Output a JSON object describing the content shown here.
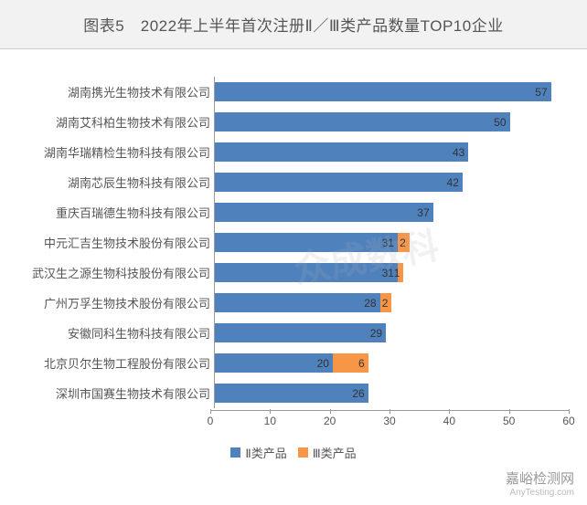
{
  "title": "图表5　2022年上半年首次注册Ⅱ／Ⅲ类产品数量TOP10企业",
  "watermark_center": "众成数科",
  "watermark_corner_main": "嘉峪检测网",
  "watermark_corner_sub": "AnyTesting.com",
  "chart": {
    "type": "stacked-bar-horizontal",
    "x_min": 0,
    "x_max": 60,
    "x_tick_step": 10,
    "series": [
      {
        "name": "Ⅱ类产品",
        "color": "#4f81bd"
      },
      {
        "name": "Ⅲ类产品",
        "color": "#f79646"
      }
    ],
    "rows": [
      {
        "label": "湖南携光生物技术有限公司",
        "v2": 57,
        "v3": 0
      },
      {
        "label": "湖南艾科柏生物技术有限公司",
        "v2": 50,
        "v3": 0
      },
      {
        "label": "湖南华瑞精检生物科技有限公司",
        "v2": 43,
        "v3": 0
      },
      {
        "label": "湖南芯辰生物科技有限公司",
        "v2": 42,
        "v3": 0
      },
      {
        "label": "重庆百瑞德生物科技有限公司",
        "v2": 37,
        "v3": 0
      },
      {
        "label": "中元汇吉生物技术股份有限公司",
        "v2": 31,
        "v3": 2
      },
      {
        "label": "武汉生之源生物科技股份有限公司",
        "v2": 31,
        "v3": 1
      },
      {
        "label": "广州万孚生物技术股份有限公司",
        "v2": 28,
        "v3": 2
      },
      {
        "label": "安徽同科生物科技有限公司",
        "v2": 29,
        "v3": 0
      },
      {
        "label": "北京贝尔生物工程股份有限公司",
        "v2": 20,
        "v3": 6
      },
      {
        "label": "深圳市国赛生物技术有限公司",
        "v2": 26,
        "v3": 0
      }
    ],
    "label_font_size": 13,
    "value_font_size": 12,
    "background_color": "#ffffff",
    "axis_color": "#999999",
    "grid_color": "rgba(150,150,150,0.15)"
  },
  "legend": {
    "items": [
      {
        "label": "Ⅱ类产品",
        "color": "#4f81bd"
      },
      {
        "label": "Ⅲ类产品",
        "color": "#f79646"
      }
    ]
  },
  "title_style": {
    "background": "#f2f2f2",
    "font_size": 17,
    "color": "#555555"
  }
}
